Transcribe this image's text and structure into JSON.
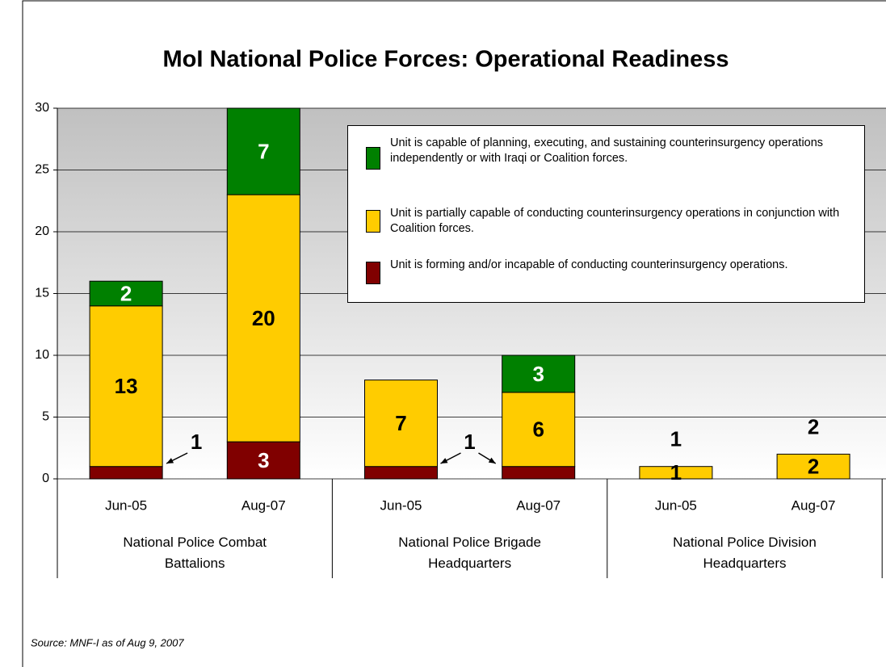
{
  "chart_data": {
    "type": "stacked_bar",
    "title": "MoI National Police Forces:  Operational Readiness",
    "categories": [
      "Jun-05",
      "Aug-07",
      "Jun-05",
      "Aug-07",
      "Jun-05",
      "Aug-07"
    ],
    "groups": [
      "National Police Combat Battalions",
      "National Police Brigade Headquarters",
      "National Police Division Headquarters"
    ],
    "series": [
      {
        "name": "Unit is forming and/or incapable of conducting counterinsurgency operations.",
        "color": "#800000",
        "values": [
          1,
          3,
          1,
          1,
          0,
          0
        ]
      },
      {
        "name": "Unit is partially capable of conducting counterinsurgency operations in conjunction with Coalition forces.",
        "color": "#ffcc00",
        "values": [
          13,
          20,
          7,
          6,
          1,
          2
        ]
      },
      {
        "name": "Unit is capable of planning, executing, and sustaining counterinsurgency operations independently or with Iraqi or Coalition forces.",
        "color": "#008000",
        "values": [
          2,
          7,
          0,
          3,
          0,
          0
        ]
      }
    ],
    "ylim": [
      0,
      30
    ],
    "yticks": [
      0,
      5,
      10,
      15,
      20,
      25,
      30
    ],
    "grid": true,
    "source": "Source: MNF-I as of Aug 9, 2007"
  }
}
